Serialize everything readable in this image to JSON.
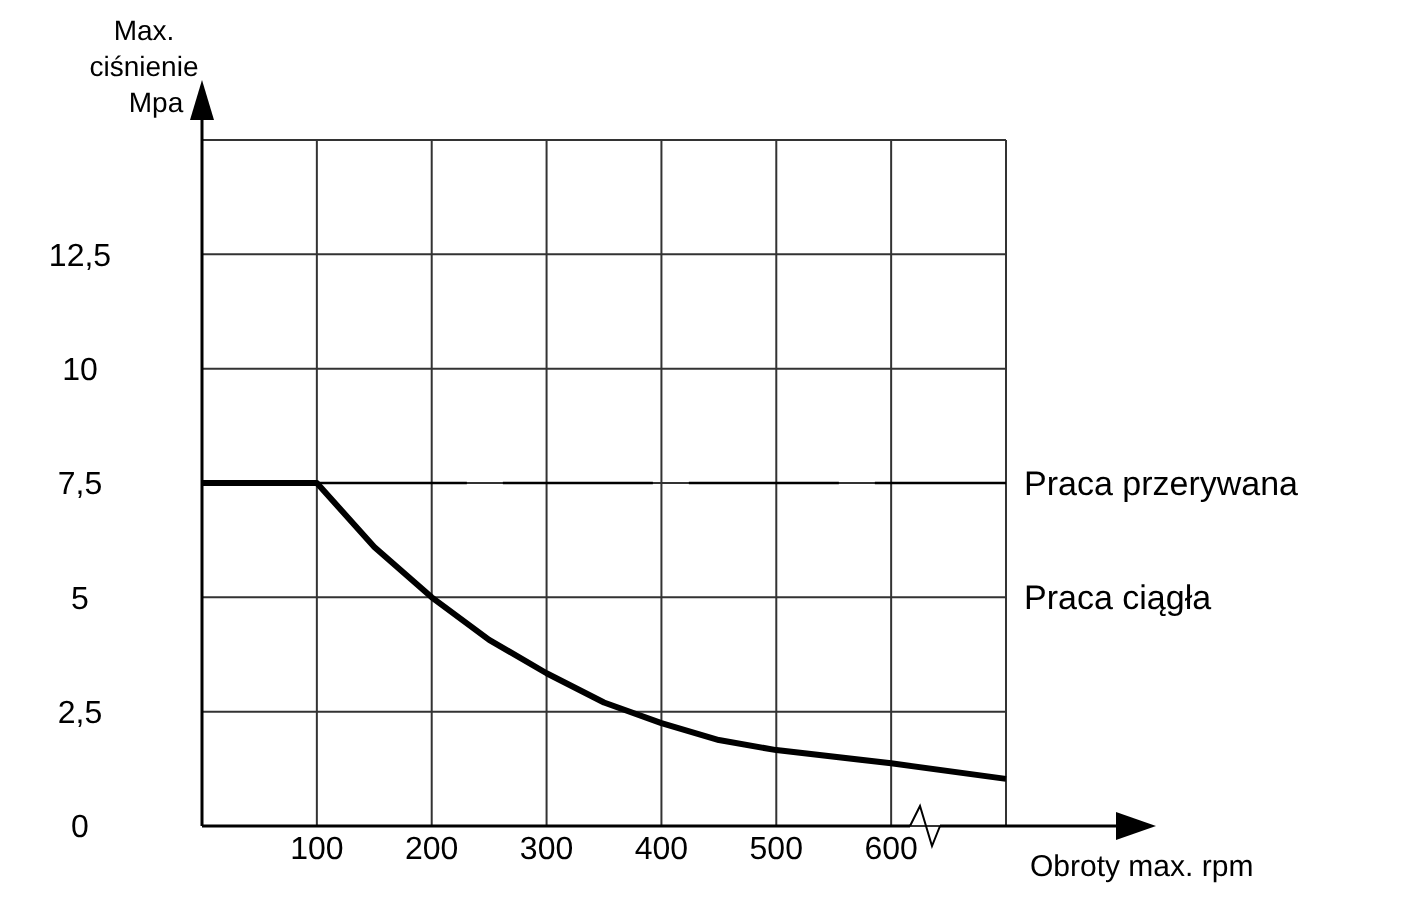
{
  "chart_data": {
    "type": "line",
    "ylabel": "Max. ciśnienie Mpa",
    "xlabel": "Obroty max. rpm",
    "xlim": [
      0,
      700
    ],
    "ylim": [
      0,
      15
    ],
    "xticks": [
      100,
      200,
      300,
      400,
      500,
      600,
      {
        "value": 700,
        "label": null
      }
    ],
    "yticks": [
      {
        "value": 0,
        "label": "0"
      },
      {
        "value": 2.5,
        "label": "2,5"
      },
      5,
      {
        "value": 7.5,
        "label": "7,5"
      },
      10,
      {
        "value": 12.5,
        "label": "12,5"
      },
      {
        "value": 15,
        "label": null
      }
    ],
    "grid": true,
    "series": [
      {
        "name": "Praca przerywana",
        "color": "#000000",
        "line_style": "dashed",
        "x": [
          100,
          700
        ],
        "values": [
          7.5,
          7.5
        ]
      },
      {
        "name": "Praca ciągła",
        "color": "#000000",
        "line_style": "solid",
        "x": [
          0,
          100,
          150,
          200,
          250,
          300,
          350,
          400,
          450,
          500,
          600,
          700
        ],
        "values": [
          7.5,
          7.5,
          6.1,
          5.0,
          4.07,
          3.34,
          2.7,
          2.25,
          1.88,
          1.66,
          1.37,
          1.03
        ]
      }
    ]
  }
}
